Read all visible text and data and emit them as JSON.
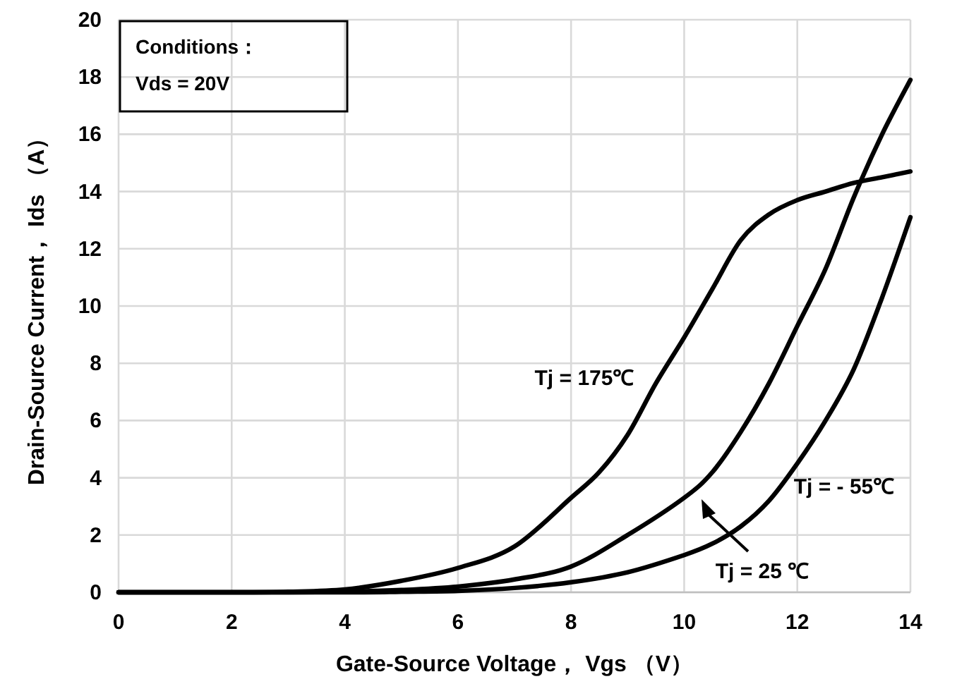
{
  "chart_data": {
    "type": "line",
    "xlabel": "Gate-Source Voltage， Vgs （V）",
    "ylabel": "Drain-Source Current， Ids （A）",
    "xlim": [
      0,
      14
    ],
    "xticks": [
      0,
      2,
      4,
      6,
      8,
      10,
      12,
      14
    ],
    "ylim": [
      0,
      20
    ],
    "yticks": [
      0,
      2,
      4,
      6,
      8,
      10,
      12,
      14,
      16,
      18,
      20
    ],
    "grid": true,
    "line_style": "solid",
    "series": [
      {
        "color": "#000000",
        "x": [
          0,
          2,
          3,
          4,
          5,
          6,
          7,
          8,
          8.5,
          9,
          9.5,
          10,
          10.5,
          11,
          11.5,
          12,
          12.5,
          13,
          13.5,
          14
        ],
        "values": [
          0,
          0,
          0.02,
          0.1,
          0.4,
          0.85,
          1.6,
          3.3,
          4.2,
          5.5,
          7.3,
          8.9,
          10.6,
          12.3,
          13.2,
          13.7,
          14.0,
          14.3,
          14.5,
          14.7
        ]
      },
      {
        "color": "#000000",
        "x": [
          0,
          3,
          4,
          5,
          6,
          7,
          8,
          9,
          10,
          10.5,
          11,
          11.5,
          12,
          12.5,
          13,
          13.5,
          14
        ],
        "values": [
          0,
          0,
          0.02,
          0.08,
          0.2,
          0.45,
          0.9,
          2.0,
          3.3,
          4.2,
          5.6,
          7.3,
          9.3,
          11.3,
          13.8,
          16.0,
          17.9
        ]
      },
      {
        "color": "#000000",
        "x": [
          0,
          4,
          5,
          6,
          7,
          8,
          9,
          10,
          10.5,
          11,
          11.5,
          12,
          12.5,
          13,
          13.5,
          14
        ],
        "values": [
          0,
          0,
          0.02,
          0.05,
          0.15,
          0.35,
          0.7,
          1.3,
          1.7,
          2.3,
          3.2,
          4.5,
          6.0,
          7.8,
          10.3,
          13.1
        ]
      }
    ],
    "annotations": [
      "Conditions：",
      "Vds = 20V",
      "Tj = 175℃",
      "Tj = 25 ℃",
      "Tj = - 55℃"
    ]
  }
}
